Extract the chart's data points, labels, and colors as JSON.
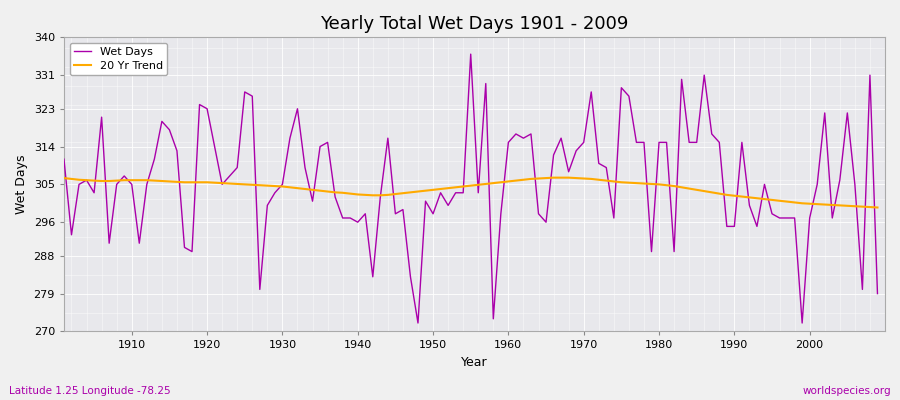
{
  "title": "Yearly Total Wet Days 1901 - 2009",
  "xlabel": "Year",
  "ylabel": "Wet Days",
  "subtitle": "Latitude 1.25 Longitude -78.25",
  "watermark": "worldspecies.org",
  "ylim": [
    270,
    340
  ],
  "yticks": [
    270,
    279,
    288,
    296,
    305,
    314,
    323,
    331,
    340
  ],
  "xticks": [
    1910,
    1920,
    1930,
    1940,
    1950,
    1960,
    1970,
    1980,
    1990,
    2000
  ],
  "xlim": [
    1901,
    2010
  ],
  "line_color": "#aa00aa",
  "trend_color": "#ffaa00",
  "fig_bg_color": "#f0f0f0",
  "plot_bg_color": "#e8e8ec",
  "years": [
    1901,
    1902,
    1903,
    1904,
    1905,
    1906,
    1907,
    1908,
    1909,
    1910,
    1911,
    1912,
    1913,
    1914,
    1915,
    1916,
    1917,
    1918,
    1919,
    1920,
    1921,
    1922,
    1923,
    1924,
    1925,
    1926,
    1927,
    1928,
    1929,
    1930,
    1931,
    1932,
    1933,
    1934,
    1935,
    1936,
    1937,
    1938,
    1939,
    1940,
    1941,
    1942,
    1943,
    1944,
    1945,
    1946,
    1947,
    1948,
    1949,
    1950,
    1951,
    1952,
    1953,
    1954,
    1955,
    1956,
    1957,
    1958,
    1959,
    1960,
    1961,
    1962,
    1963,
    1964,
    1965,
    1966,
    1967,
    1968,
    1969,
    1970,
    1971,
    1972,
    1973,
    1974,
    1975,
    1976,
    1977,
    1978,
    1979,
    1980,
    1981,
    1982,
    1983,
    1984,
    1985,
    1986,
    1987,
    1988,
    1989,
    1990,
    1991,
    1992,
    1993,
    1994,
    1995,
    1996,
    1997,
    1998,
    1999,
    2000,
    2001,
    2002,
    2003,
    2004,
    2005,
    2006,
    2007,
    2008,
    2009
  ],
  "wet_days": [
    311,
    293,
    305,
    306,
    303,
    321,
    291,
    305,
    307,
    305,
    291,
    305,
    311,
    320,
    318,
    313,
    290,
    289,
    324,
    323,
    314,
    305,
    307,
    309,
    327,
    326,
    280,
    300,
    303,
    305,
    316,
    323,
    309,
    301,
    314,
    315,
    302,
    297,
    297,
    296,
    298,
    283,
    302,
    316,
    298,
    299,
    283,
    272,
    301,
    298,
    303,
    300,
    303,
    303,
    336,
    303,
    329,
    273,
    298,
    315,
    317,
    316,
    317,
    298,
    296,
    312,
    316,
    308,
    313,
    315,
    327,
    310,
    309,
    297,
    328,
    326,
    315,
    315,
    289,
    315,
    315,
    289,
    330,
    315,
    315,
    331,
    317,
    315,
    295,
    295,
    315,
    300,
    295,
    305,
    298,
    297,
    297,
    297,
    272,
    297,
    305,
    322,
    297,
    306,
    322,
    305,
    280,
    331,
    279
  ],
  "trend": [
    306.5,
    306.3,
    306.1,
    306.0,
    305.9,
    305.8,
    305.8,
    305.9,
    306.0,
    306.0,
    306.0,
    306.0,
    305.9,
    305.8,
    305.7,
    305.6,
    305.5,
    305.5,
    305.5,
    305.5,
    305.4,
    305.3,
    305.2,
    305.1,
    305.0,
    304.9,
    304.8,
    304.7,
    304.6,
    304.5,
    304.3,
    304.1,
    303.9,
    303.7,
    303.5,
    303.3,
    303.1,
    303.0,
    302.8,
    302.6,
    302.5,
    302.4,
    302.4,
    302.5,
    302.7,
    302.9,
    303.1,
    303.3,
    303.5,
    303.7,
    303.9,
    304.1,
    304.3,
    304.5,
    304.7,
    304.9,
    305.1,
    305.3,
    305.5,
    305.7,
    305.9,
    306.1,
    306.3,
    306.4,
    306.5,
    306.6,
    306.6,
    306.6,
    306.5,
    306.4,
    306.3,
    306.1,
    305.9,
    305.7,
    305.5,
    305.4,
    305.3,
    305.2,
    305.1,
    305.0,
    304.8,
    304.6,
    304.3,
    304.0,
    303.7,
    303.4,
    303.1,
    302.8,
    302.5,
    302.3,
    302.1,
    301.9,
    301.7,
    301.5,
    301.3,
    301.1,
    300.9,
    300.7,
    300.5,
    300.4,
    300.3,
    300.2,
    300.1,
    300.0,
    299.9,
    299.8,
    299.7,
    299.6,
    299.5
  ]
}
